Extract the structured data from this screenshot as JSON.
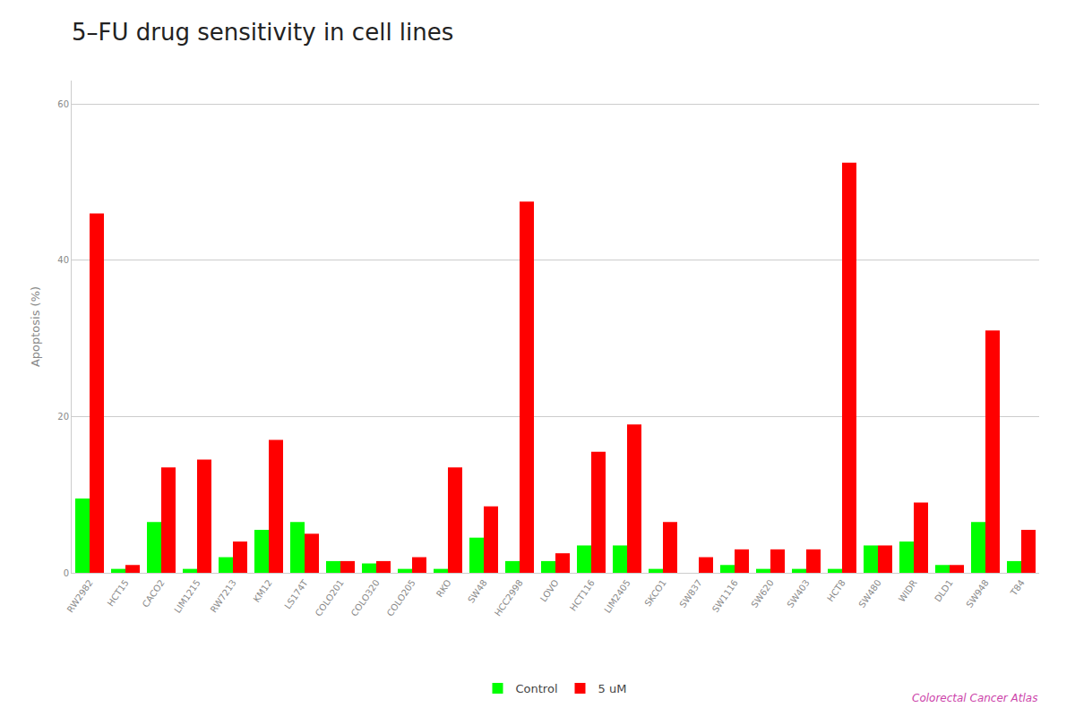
{
  "chart_data": {
    "type": "bar",
    "title": "5–FU drug sensitivity in cell lines",
    "ylabel": "Apoptosis (%)",
    "categories": [
      "RW2982",
      "HCT15",
      "CACO2",
      "LIM1215",
      "RW7213",
      "KM12",
      "LS174T",
      "COLO201",
      "COLO320",
      "COLO205",
      "RKO",
      "SW48",
      "HCC2998",
      "LOVO",
      "HCT116",
      "LIM2405",
      "SKCO1",
      "SW837",
      "SW1116",
      "SW620",
      "SW403",
      "HCT8",
      "SW480",
      "WIDR",
      "DLD1",
      "SW948",
      "T84"
    ],
    "series": [
      {
        "name": "Control",
        "color": "#00ff00",
        "values": [
          9.5,
          0.5,
          6.5,
          0.5,
          2.0,
          5.5,
          6.5,
          1.5,
          1.2,
          0.5,
          0.5,
          4.5,
          1.5,
          1.5,
          3.5,
          3.5,
          0.5,
          0.0,
          1.0,
          0.5,
          0.5,
          0.5,
          3.5,
          4.0,
          1.0,
          6.5,
          1.5
        ]
      },
      {
        "name": "5 uM",
        "color": "#ff0000",
        "values": [
          46.0,
          1.0,
          13.5,
          14.5,
          4.0,
          17.0,
          5.0,
          1.5,
          1.5,
          2.0,
          13.5,
          8.5,
          47.5,
          2.5,
          15.5,
          19.0,
          6.5,
          2.0,
          3.0,
          3.0,
          3.0,
          52.5,
          3.5,
          9.0,
          1.0,
          31.0,
          5.5
        ]
      }
    ],
    "ylim": [
      0,
      63
    ],
    "yticks": [
      0,
      20,
      40,
      60
    ],
    "grid": true,
    "legend": "bottom",
    "annotations": [
      {
        "text": "Colorectal Cancer Atlas",
        "color": "#cc44aa"
      }
    ]
  }
}
